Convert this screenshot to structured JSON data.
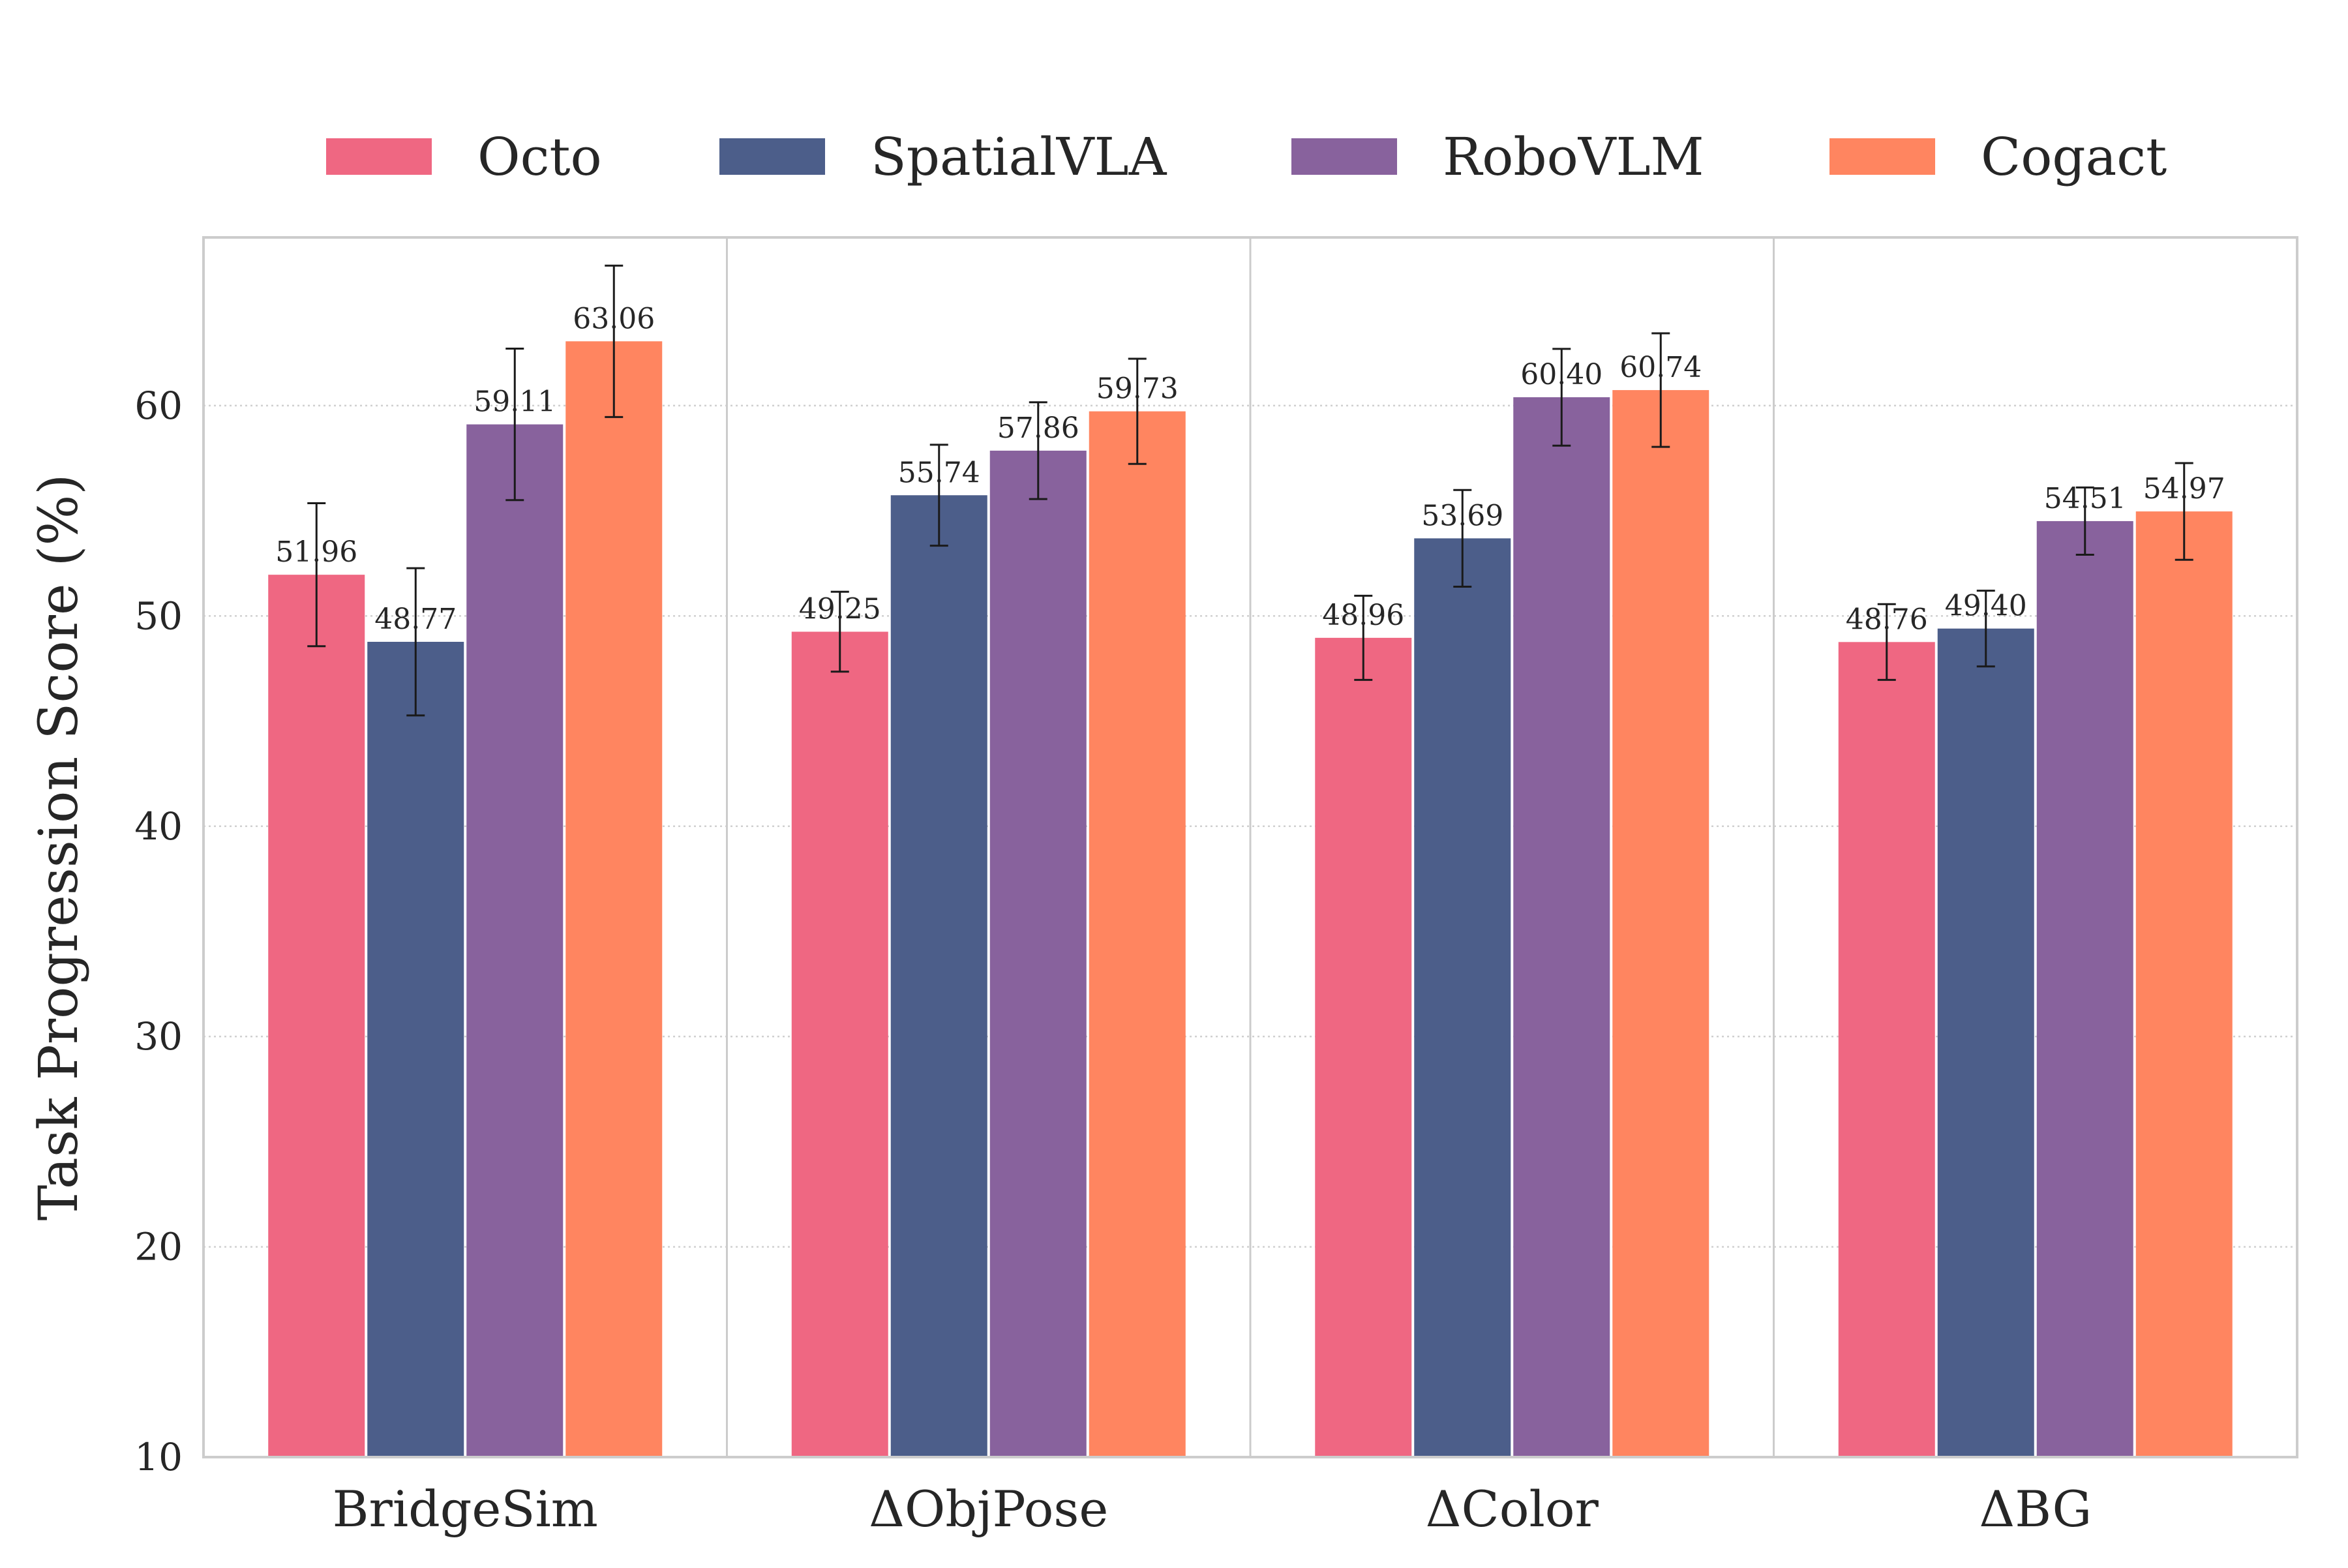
{
  "chart_data": {
    "type": "bar",
    "title": "",
    "xlabel": "",
    "ylabel": "Task Progression Score (%)",
    "ylim": [
      10,
      68
    ],
    "yticks": [
      10,
      20,
      30,
      40,
      50,
      60
    ],
    "grid": true,
    "legend_position": "top-center",
    "categories": [
      "BridgeSim",
      "ΔObjPose",
      "ΔColor",
      "ΔBG"
    ],
    "series": [
      {
        "name": "Octo",
        "color": "#ef6782",
        "values": [
          51.96,
          49.25,
          48.96,
          48.76
        ],
        "errors": [
          3.4,
          1.9,
          2.0,
          1.8
        ],
        "labels": [
          "51.96",
          "49.25",
          "48.96",
          "48.76"
        ]
      },
      {
        "name": "SpatialVLA",
        "color": "#4c5e8a",
        "values": [
          48.77,
          55.74,
          53.69,
          49.4
        ],
        "errors": [
          3.5,
          2.4,
          2.3,
          1.8
        ],
        "labels": [
          "48.77",
          "55.74",
          "53.69",
          "49.40"
        ]
      },
      {
        "name": "RoboVLM",
        "color": "#88629d",
        "values": [
          59.11,
          57.86,
          60.4,
          54.51
        ],
        "errors": [
          3.6,
          2.3,
          2.3,
          1.6
        ],
        "labels": [
          "59.11",
          "57.86",
          "60.40",
          "54.51"
        ]
      },
      {
        "name": "Cogact",
        "color": "#ff8560",
        "values": [
          63.06,
          59.73,
          60.74,
          54.97
        ],
        "errors": [
          3.6,
          2.5,
          2.7,
          2.3
        ],
        "labels": [
          "63.06",
          "59.73",
          "60.74",
          "54.97"
        ]
      }
    ]
  }
}
